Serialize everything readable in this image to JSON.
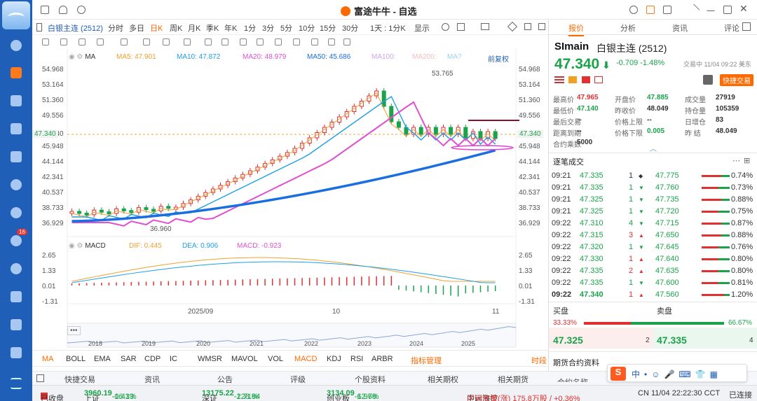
{
  "window": {
    "title": "富途牛牛 - 自选"
  },
  "toolbar": {
    "symbol": "白银主连 (2512)",
    "periods": [
      "分时",
      "多日",
      "日K",
      "周K",
      "月K",
      "季K",
      "年K",
      "1分",
      "3分",
      "5分",
      "10分",
      "15分",
      "30分"
    ],
    "active_period": "日K",
    "range_label": "1天 : 1分K",
    "display_label": "显示"
  },
  "chart": {
    "ma_legend": {
      "label": "MA",
      "ma5": "MA5: 47.901",
      "ma10": "MA10: 47.872",
      "ma20": "MA20: 48.979",
      "ma50": "MA50: 45.686",
      "ma100": "MA100:",
      "ma200": "MA200:",
      "ma_extra": "MA?",
      "adjust": "前复权"
    },
    "price_ticks": [
      "54.968",
      "53.164",
      "51.360",
      "49.556",
      "47.340",
      "45.948",
      "44.144",
      "42.341",
      "40.537",
      "38.733",
      "36.929"
    ],
    "high_label": "53.765",
    "low_label": "36.960",
    "macd_legend": {
      "label": "MACD",
      "dif": "DIF: 0.445",
      "dea": "DEA: 0.906",
      "macd": "MACD: -0.923"
    },
    "macd_ticks": [
      "2.65",
      "1.33",
      "0.01",
      "-1.31"
    ],
    "date_ticks": [
      "2025/09",
      "10",
      "11"
    ],
    "overview_years": [
      "2018",
      "2019",
      "2020",
      "2021",
      "2022",
      "2023",
      "2024",
      "2025"
    ],
    "colors": {
      "up": "#e03030",
      "down": "#1aa34a",
      "ma5": "#f0a030",
      "ma10": "#1ea0e6",
      "ma20": "#e050d0",
      "ma50": "#1a6fe0"
    }
  },
  "indicators": {
    "items": [
      "MA",
      "BOLL",
      "EMA",
      "SAR",
      "CDP",
      "IC",
      "WMSR",
      "MAVOL",
      "VOL",
      "MACD",
      "KDJ",
      "RSI",
      "ARBR"
    ],
    "active": [
      "MA",
      "MACD"
    ],
    "manage": "指标管理",
    "period_label": "时段"
  },
  "bottom_tabs": [
    "快捷交易",
    "资讯",
    "公告",
    "评级",
    "个股资料",
    "相关期权",
    "相关期货"
  ],
  "right_panel": {
    "tabs": [
      "报价",
      "分析",
      "资讯",
      "评论"
    ],
    "code": "SImain",
    "name": "白银主连 (2512)",
    "price": "47.340",
    "change": "-0.709",
    "change_pct": "-1.48%",
    "trade_status": "交易中 11/04 09:22 美东",
    "quick_trade": "快捷交易",
    "quote": [
      {
        "label": "最高价",
        "value": "47.965",
        "color": "up"
      },
      {
        "label": "开盘价",
        "value": "47.885",
        "color": "dn"
      },
      {
        "label": "成交量",
        "value": "27919",
        "color": "plain"
      },
      {
        "label": "最低价",
        "value": "47.140",
        "color": "dn"
      },
      {
        "label": "昨收价",
        "value": "48.049",
        "color": "plain"
      },
      {
        "label": "持仓量",
        "value": "105359",
        "color": "plain"
      },
      {
        "label": "最后交易",
        "value": "--",
        "color": "plain"
      },
      {
        "label": "价格上限",
        "value": "--",
        "color": "plain"
      },
      {
        "label": "日增仓",
        "value": "83",
        "color": "plain"
      },
      {
        "label": "距离到期",
        "value": "--",
        "color": "plain"
      },
      {
        "label": "价格下限",
        "value": "0.005",
        "color": "dn"
      },
      {
        "label": "昨  结",
        "value": "48.049",
        "color": "plain"
      },
      {
        "label": "合约乘数",
        "value": "5000",
        "color": "plain"
      }
    ],
    "ticks_title": "逐笔成交",
    "ticks": [
      {
        "time": "09:21",
        "price": "47.335",
        "vol": "1",
        "dir": "flat",
        "p2": "47.775",
        "pct": "0.74%",
        "red": 0.7
      },
      {
        "time": "09:21",
        "price": "47.335",
        "vol": "1",
        "dir": "down",
        "p2": "47.760",
        "pct": "0.73%",
        "red": 0.6
      },
      {
        "time": "09:21",
        "price": "47.325",
        "vol": "1",
        "dir": "down",
        "p2": "47.735",
        "pct": "0.88%",
        "red": 0.7
      },
      {
        "time": "09:21",
        "price": "47.325",
        "vol": "1",
        "dir": "down",
        "p2": "47.720",
        "pct": "0.75%",
        "red": 0.6
      },
      {
        "time": "09:22",
        "price": "47.310",
        "vol": "4",
        "dir": "down",
        "p2": "47.715",
        "pct": "0.87%",
        "red": 0.7
      },
      {
        "time": "09:22",
        "price": "47.315",
        "vol": "3",
        "dir": "up",
        "p2": "47.650",
        "pct": "0.88%",
        "red": 0.7
      },
      {
        "time": "09:22",
        "price": "47.320",
        "vol": "1",
        "dir": "down",
        "p2": "47.645",
        "pct": "0.76%",
        "red": 0.6
      },
      {
        "time": "09:22",
        "price": "47.330",
        "vol": "1",
        "dir": "up",
        "p2": "47.640",
        "pct": "0.80%",
        "red": 0.6
      },
      {
        "time": "09:22",
        "price": "47.335",
        "vol": "2",
        "dir": "up",
        "p2": "47.635",
        "pct": "0.80%",
        "red": 0.6
      },
      {
        "time": "09:22",
        "price": "47.335",
        "vol": "1",
        "dir": "down",
        "p2": "47.600",
        "pct": "0.81%",
        "red": 0.6
      },
      {
        "time": "09:22",
        "price": "47.340",
        "vol": "1",
        "dir": "up",
        "p2": "47.560",
        "pct": "1.20%",
        "red": 0.8
      }
    ],
    "orderbook": {
      "buy_label": "买盘",
      "sell_label": "卖盘",
      "buy_pct": "33.33%",
      "sell_pct": "66.67%",
      "bid": "47.325",
      "bid_vol": "2",
      "ask": "47.335",
      "ask_vol": "4"
    },
    "futures_title": "期货合约资料",
    "contract_name_label": "合约名称"
  },
  "status_bar": {
    "market_status": "已收盘",
    "sh": {
      "name": "上证",
      "value": "3960.19",
      "chg": "-16.33",
      "pct": "-0.41%"
    },
    "sz": {
      "name": "深证",
      "value": "13175.22",
      "chg": "-228.84",
      "pct": "-1.71%"
    },
    "cy": {
      "name": "创业板",
      "value": "3134.09",
      "chg": "-62.78",
      "pct": "-1.96%"
    },
    "broker": "中远海控",
    "broker_note": "区间放量(涨) 175.8万股 / +0.36%",
    "clock": "CN 11/04 22:22:30 CCT",
    "conn": "已连接"
  }
}
